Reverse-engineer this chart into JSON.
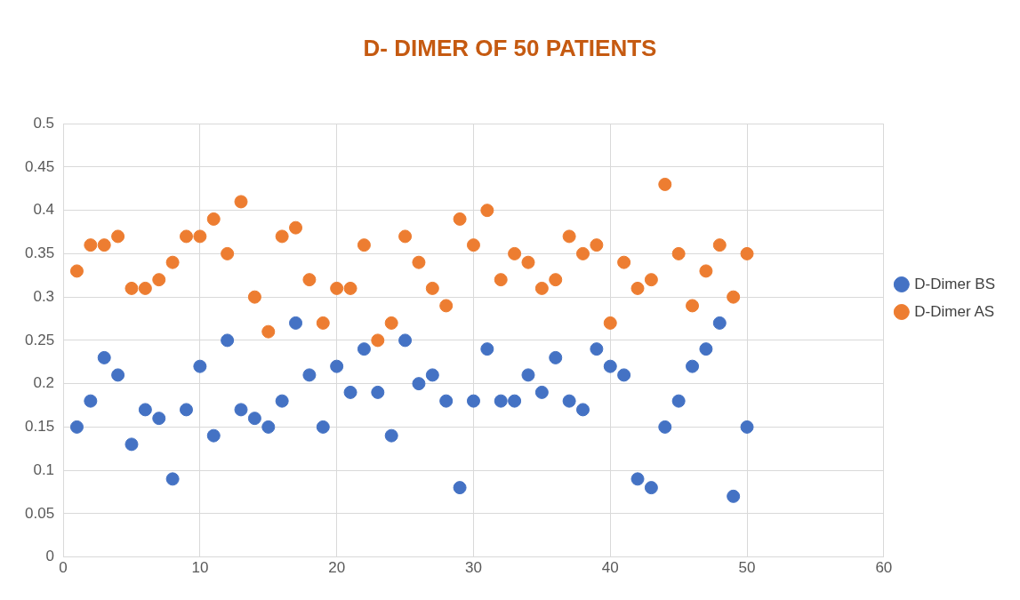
{
  "chart_data": {
    "type": "scatter",
    "title": "D- DIMER OF 50 PATIENTS",
    "x": [
      1,
      2,
      3,
      4,
      5,
      6,
      7,
      8,
      9,
      10,
      11,
      12,
      13,
      14,
      15,
      16,
      17,
      18,
      19,
      20,
      21,
      22,
      23,
      24,
      25,
      26,
      27,
      28,
      29,
      30,
      31,
      32,
      33,
      34,
      35,
      36,
      37,
      38,
      39,
      40,
      41,
      42,
      43,
      44,
      45,
      46,
      47,
      48,
      49,
      50
    ],
    "series": [
      {
        "name": "D-Dimer BS",
        "color": "#4472c4",
        "values": [
          0.15,
          0.18,
          0.23,
          0.21,
          0.13,
          0.17,
          0.16,
          0.09,
          0.17,
          0.22,
          0.14,
          0.25,
          0.17,
          0.16,
          0.15,
          0.18,
          0.27,
          0.21,
          0.15,
          0.22,
          0.19,
          0.24,
          0.19,
          0.14,
          0.25,
          0.2,
          0.21,
          0.18,
          0.08,
          0.18,
          0.24,
          0.18,
          0.18,
          0.21,
          0.19,
          0.23,
          0.18,
          0.17,
          0.24,
          0.22,
          0.21,
          0.09,
          0.08,
          0.15,
          0.18,
          0.22,
          0.24,
          0.27,
          0.07,
          0.15
        ]
      },
      {
        "name": "D-Dimer AS",
        "color": "#ed7d31",
        "values": [
          0.33,
          0.36,
          0.36,
          0.37,
          0.31,
          0.31,
          0.32,
          0.34,
          0.37,
          0.37,
          0.39,
          0.35,
          0.41,
          0.3,
          0.26,
          0.37,
          0.38,
          0.32,
          0.27,
          0.31,
          0.31,
          0.36,
          0.25,
          0.27,
          0.37,
          0.34,
          0.31,
          0.29,
          0.39,
          0.36,
          0.4,
          0.32,
          0.35,
          0.34,
          0.31,
          0.32,
          0.37,
          0.35,
          0.36,
          0.27,
          0.34,
          0.31,
          0.32,
          0.43,
          0.35,
          0.29,
          0.33,
          0.36,
          0.3,
          0.35
        ]
      }
    ],
    "xlim": [
      0,
      60
    ],
    "xticks": [
      0,
      10,
      20,
      30,
      40,
      50,
      60
    ],
    "ylim": [
      0,
      0.5
    ],
    "yticks": [
      0,
      0.05,
      0.1,
      0.15,
      0.2,
      0.25,
      0.3,
      0.35,
      0.4,
      0.45,
      0.5
    ],
    "grid": true,
    "legend": "right",
    "marker": "circle"
  }
}
